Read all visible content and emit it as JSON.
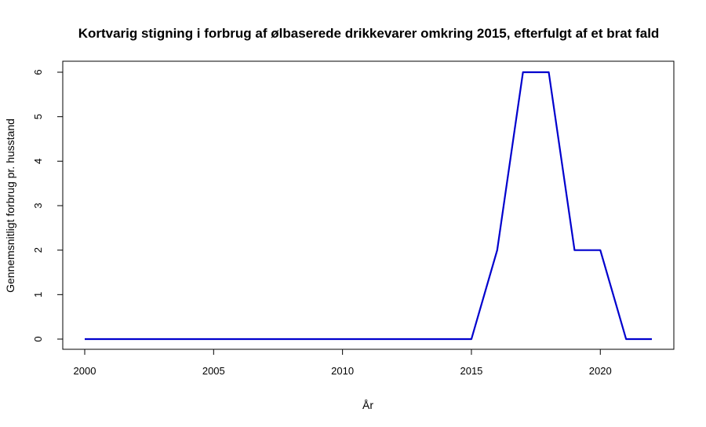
{
  "chart_data": {
    "type": "line",
    "title": "Kortvarig stigning i forbrug af ølbaserede drikkevarer omkring 2015, efterfulgt af et brat fald",
    "xlabel": "År",
    "ylabel": "Gennemsnitligt forbrug pr. husstand",
    "x": [
      2000,
      2001,
      2002,
      2003,
      2004,
      2005,
      2006,
      2007,
      2008,
      2009,
      2010,
      2011,
      2012,
      2013,
      2014,
      2015,
      2016,
      2017,
      2018,
      2019,
      2020,
      2021,
      2022
    ],
    "series": [
      {
        "values": [
          0,
          0,
          0,
          0,
          0,
          0,
          0,
          0,
          0,
          0,
          0,
          0,
          0,
          0,
          0,
          0,
          2,
          6,
          6,
          2,
          2,
          0,
          0
        ],
        "color": "#0000CD"
      }
    ],
    "xticks": [
      "2000",
      "2005",
      "2010",
      "2015",
      "2020"
    ],
    "yticks": [
      "0",
      "1",
      "2",
      "3",
      "4",
      "5",
      "6"
    ],
    "xlim": [
      2000,
      2022
    ],
    "ylim": [
      0,
      6
    ],
    "grid": false,
    "legend": "none"
  }
}
